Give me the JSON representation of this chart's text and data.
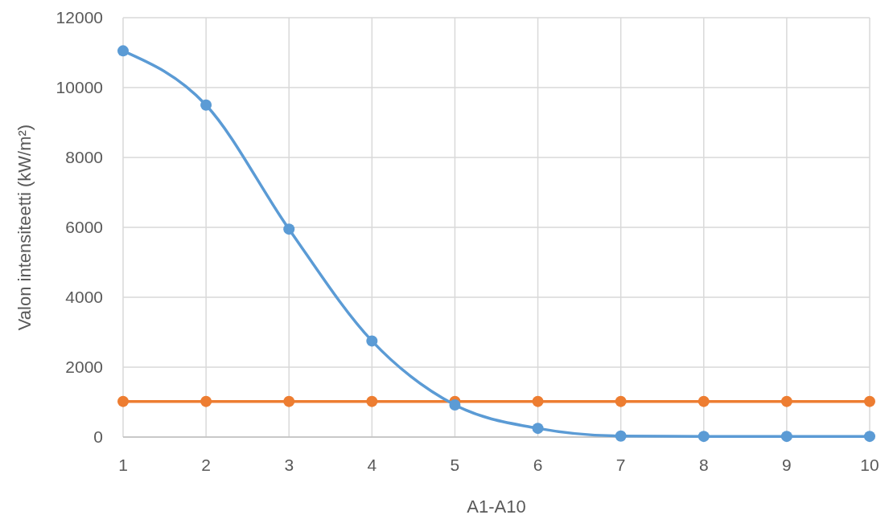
{
  "chart_data": {
    "type": "line",
    "xlabel": "A1-A10",
    "ylabel": "Valon intensiteetti (kW/m²)",
    "x": [
      1,
      2,
      3,
      4,
      5,
      6,
      7,
      8,
      9,
      10
    ],
    "series": [
      {
        "color": "#5b9bd5",
        "values": [
          11050,
          9500,
          5950,
          2750,
          920,
          250,
          30,
          20,
          20,
          20
        ]
      },
      {
        "color": "#ed7d31",
        "values": [
          1020,
          1020,
          1020,
          1020,
          1020,
          1020,
          1020,
          1020,
          1020,
          1020
        ]
      }
    ],
    "xlim": [
      1,
      10
    ],
    "xticks": [
      1,
      2,
      3,
      4,
      5,
      6,
      7,
      8,
      9,
      10
    ],
    "ylim": [
      0,
      12000
    ],
    "yticks": [
      0,
      2000,
      4000,
      6000,
      8000,
      10000,
      12000
    ],
    "grid": true,
    "marker": "circle",
    "line_style": "solid"
  }
}
